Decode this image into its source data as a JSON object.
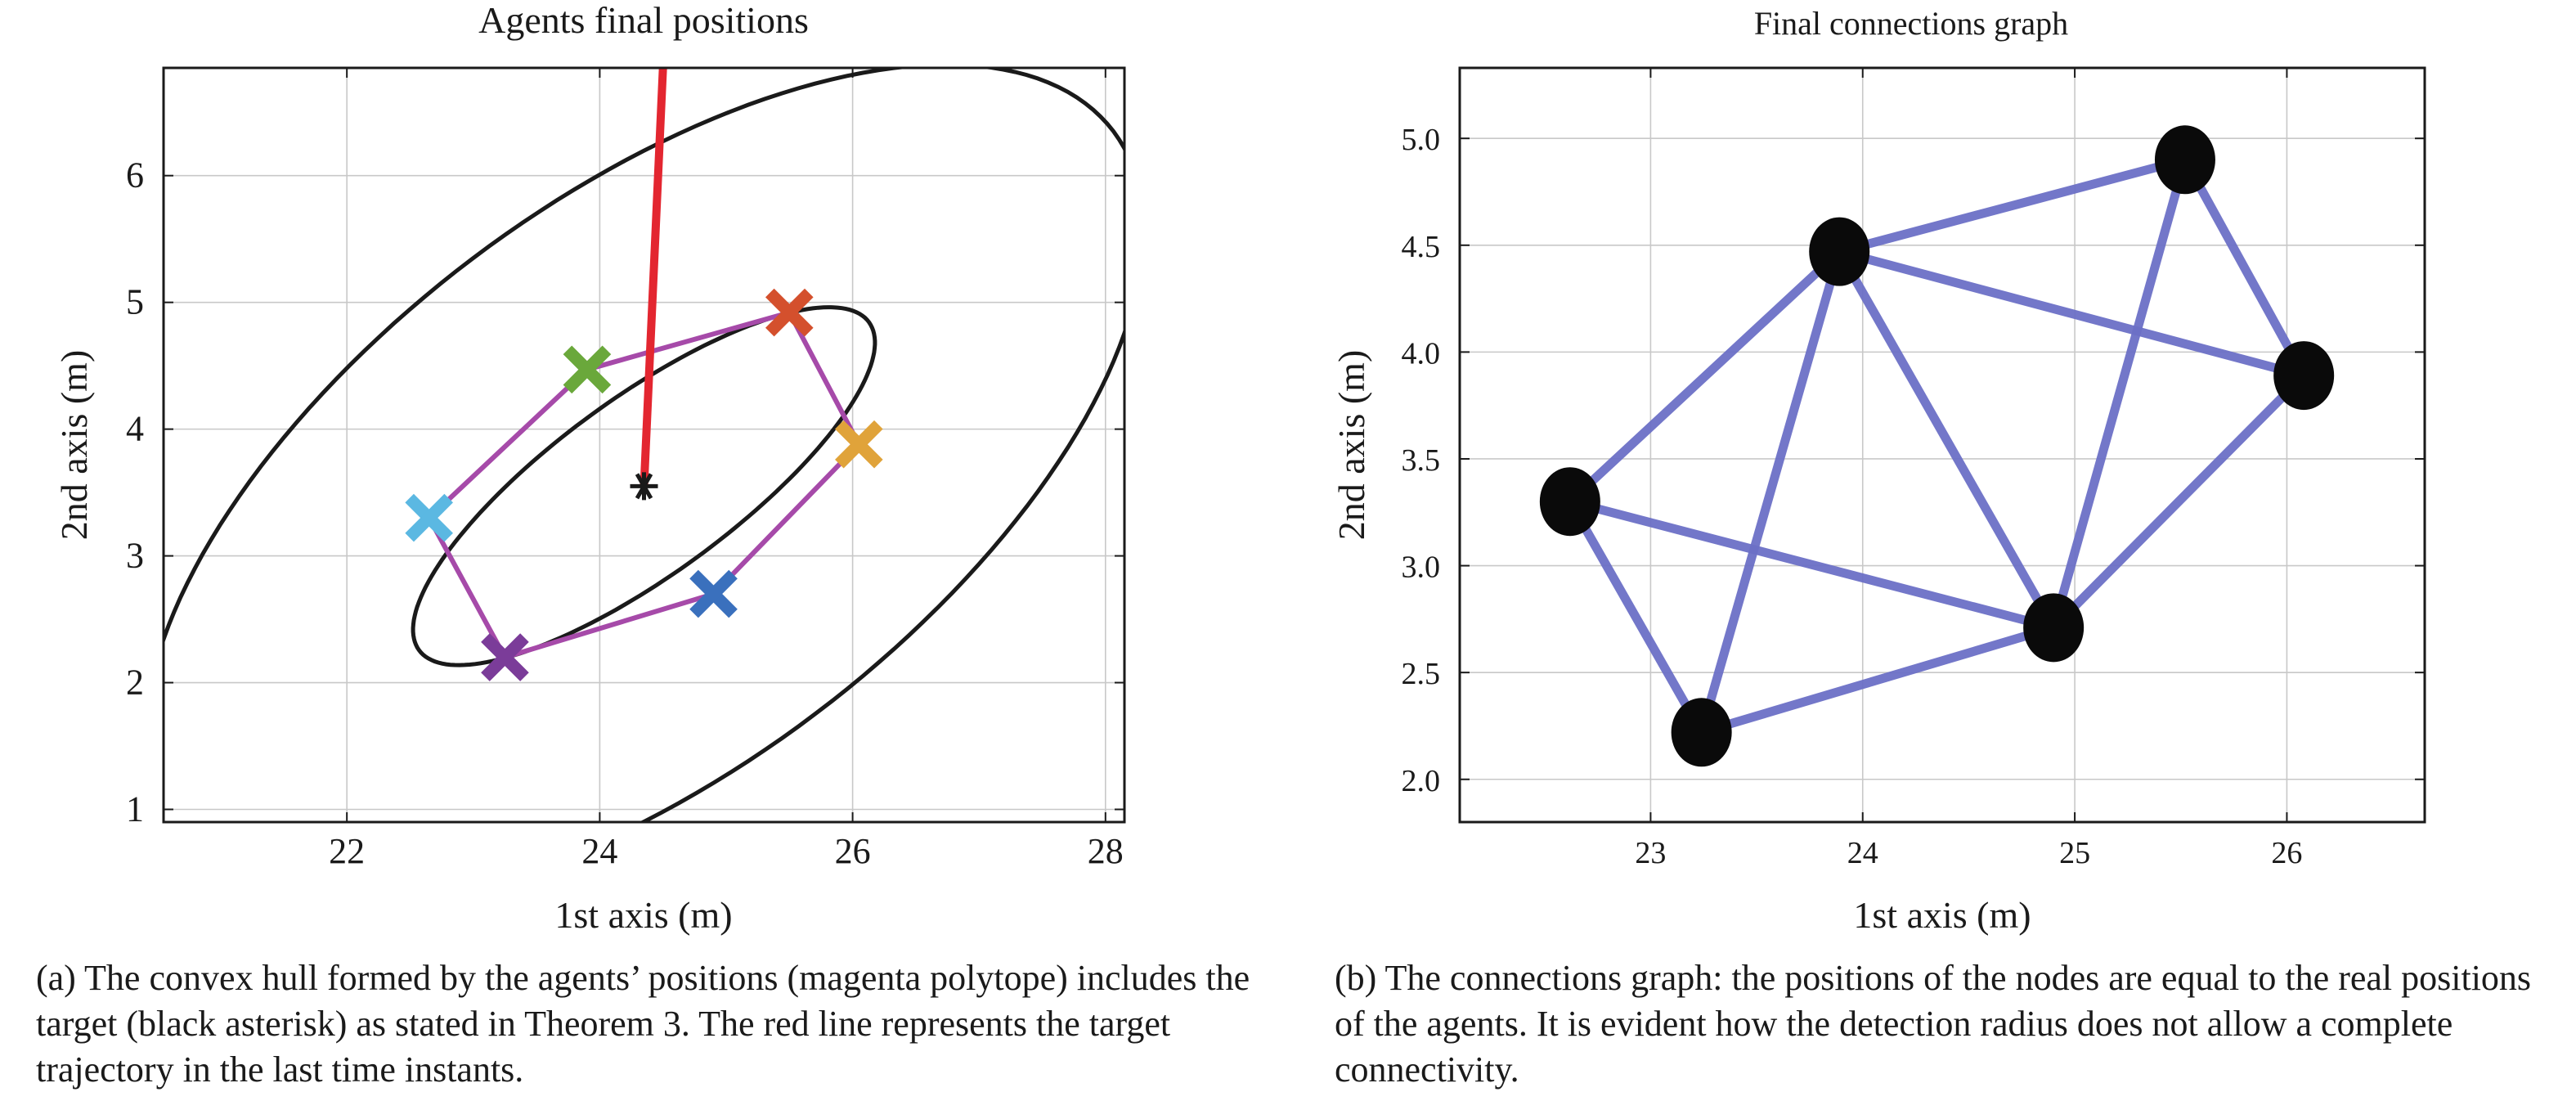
{
  "chart_data": [
    {
      "type": "scatter",
      "title": "Agents final positions",
      "xlabel": "1st axis (m)",
      "ylabel": "2nd axis (m)",
      "xlim": [
        20.55,
        28.15
      ],
      "ylim": [
        0.9,
        6.85
      ],
      "xticks": [
        22,
        24,
        26,
        28
      ],
      "yticks": [
        1,
        2,
        3,
        4,
        5,
        6
      ],
      "grid": true,
      "series": [
        {
          "x": 23.9,
          "y": 4.47,
          "color": "#6aa83b"
        },
        {
          "x": 25.5,
          "y": 4.92,
          "color": "#d4502d"
        },
        {
          "x": 26.05,
          "y": 3.88,
          "color": "#e0a33a"
        },
        {
          "x": 24.9,
          "y": 2.7,
          "color": "#3a70bd"
        },
        {
          "x": 23.25,
          "y": 2.2,
          "color": "#7b3c99"
        },
        {
          "x": 22.65,
          "y": 3.3,
          "color": "#5bb8e2"
        }
      ],
      "hull_color": "#a64aa9",
      "target": {
        "x": 24.35,
        "y": 3.55,
        "color": "#1a1a1a"
      },
      "target_trajectory": {
        "x": [
          24.5,
          24.35
        ],
        "y": [
          6.85,
          3.55
        ],
        "color": "#e32630"
      },
      "ellipses": [
        {
          "cx": 24.35,
          "cy": 3.55,
          "a": 2.2,
          "b": 0.7,
          "angle_deg": 36
        },
        {
          "cx": 24.35,
          "cy": 3.55,
          "a": 4.65,
          "b": 2.25,
          "angle_deg": 37
        }
      ],
      "caption": "(a) The convex hull formed by the agents’ positions (magenta polytope) includes the target (black asterisk) as stated in Theorem 3. The red line represents the target trajectory in the last time instants."
    },
    {
      "type": "scatter",
      "title": "Final connections graph",
      "xlabel": "1st axis (m)",
      "ylabel": "2nd axis (m)",
      "xlim": [
        22.1,
        26.65
      ],
      "ylim": [
        1.8,
        5.33
      ],
      "xticks": [
        23,
        24,
        25,
        26
      ],
      "yticks": [
        "2.0",
        "2.5",
        "3.0",
        "3.5",
        "4.0",
        "4.5",
        "5.0"
      ],
      "grid": true,
      "nodes": [
        {
          "x": 23.89,
          "y": 4.47
        },
        {
          "x": 25.52,
          "y": 4.9
        },
        {
          "x": 26.08,
          "y": 3.89
        },
        {
          "x": 24.9,
          "y": 2.71
        },
        {
          "x": 23.24,
          "y": 2.22
        },
        {
          "x": 22.62,
          "y": 3.3
        }
      ],
      "node_color": "#0a0a0a",
      "edge_color": "#6c70c6",
      "edges": [
        [
          0,
          1
        ],
        [
          0,
          2
        ],
        [
          0,
          3
        ],
        [
          0,
          4
        ],
        [
          0,
          5
        ],
        [
          1,
          2
        ],
        [
          1,
          3
        ],
        [
          2,
          3
        ],
        [
          3,
          4
        ],
        [
          3,
          5
        ],
        [
          4,
          5
        ]
      ],
      "caption": "(b) The connections graph: the positions of the nodes are equal to the real positions of the agents. It is evident how the detection radius does not allow a complete connectivity."
    }
  ]
}
